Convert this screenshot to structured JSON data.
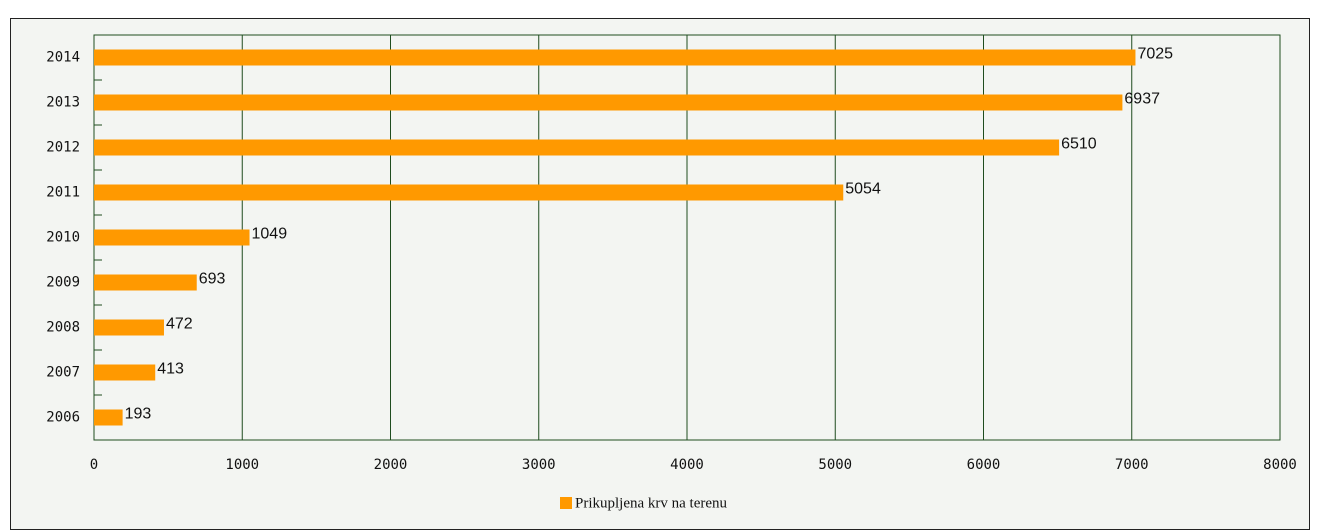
{
  "chart_data": {
    "type": "bar",
    "orientation": "horizontal",
    "categories": [
      "2006",
      "2007",
      "2008",
      "2009",
      "2010",
      "2011",
      "2012",
      "2013",
      "2014"
    ],
    "series": [
      {
        "name": "Prikupljena krv na terenu",
        "color": "#ff9900",
        "values": [
          193,
          413,
          472,
          693,
          1049,
          5054,
          6510,
          6937,
          7025
        ]
      }
    ],
    "xlim": [
      0,
      8000
    ],
    "xticks": [
      0,
      1000,
      2000,
      3000,
      4000,
      5000,
      6000,
      7000,
      8000
    ],
    "grid": true,
    "legend": "bottom"
  }
}
